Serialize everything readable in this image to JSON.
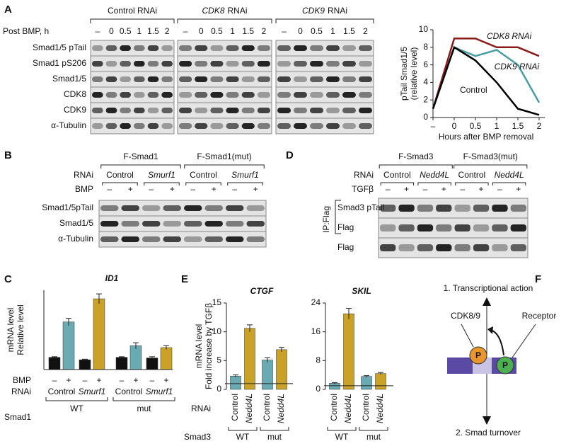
{
  "panel_labels": [
    "A",
    "B",
    "C",
    "D",
    "E",
    "F"
  ],
  "panel_a": {
    "headers": [
      {
        "text": "Control RNAi"
      },
      {
        "gene": "CDK8",
        "text": "RNAi"
      },
      {
        "gene": "CDK9",
        "text": "RNAi"
      }
    ],
    "time_label": "Post BMP, h",
    "lanes": [
      "–",
      "0",
      "0.5",
      "1",
      "1.5",
      "2"
    ],
    "rows": [
      "Smad1/5 pTail",
      "Smad1 pS206",
      "Smad1/5",
      "CDK8",
      "CDK9",
      "α-Tubulin"
    ]
  },
  "panel_b": {
    "constructs": [
      "F-Smad1",
      "F-Smad1(mut)"
    ],
    "rnai_label": "RNAi",
    "rnai": [
      "Control",
      "Smurf1",
      "Control",
      "Smurf1"
    ],
    "treatment_label": "BMP",
    "treatment": [
      "–",
      "+",
      "–",
      "+",
      "–",
      "+",
      "–",
      "+"
    ],
    "rows": [
      "Smad1/5pTail",
      "Smad1/5",
      "α-Tubulin"
    ]
  },
  "panel_d": {
    "constructs": [
      "F-Smad3",
      "F-Smad3(mut)"
    ],
    "rnai_label": "RNAi",
    "rnai": [
      "Control",
      "Nedd4L",
      "Control",
      "Nedd4L"
    ],
    "treatment_label": "TGFβ",
    "treatment": [
      "–",
      "+",
      "–",
      "+",
      "–",
      "+",
      "–",
      "+"
    ],
    "ip_label": "IP:Flag",
    "rows": [
      "Smad3 pTail",
      "Flag",
      "Flag"
    ]
  },
  "panel_f": {
    "top": "1. Transcriptional action",
    "kinase": "CDK8/9",
    "receptor": "Receptor",
    "phospho": [
      "P",
      "P"
    ],
    "bottom": "2. Smad turnover"
  },
  "chart_data": [
    {
      "type": "line",
      "categories": [
        "–",
        "0",
        "0.5",
        "1",
        "1.5",
        "2"
      ],
      "ylabel": [
        "pTail Smad1/5",
        "(relative level)"
      ],
      "xlabel": "Hours after BMP removal",
      "ylim": [
        0,
        10
      ],
      "yticks": [
        0,
        2,
        4,
        6,
        8,
        10
      ],
      "series": [
        {
          "name": "CDK8 RNAi",
          "color": "#8b1a1a",
          "values": [
            1,
            9,
            9,
            8,
            8,
            7
          ]
        },
        {
          "name": "CDK9 RNAi",
          "color": "#4a9da3",
          "values": [
            1,
            8,
            7,
            7.7,
            6,
            1.7
          ]
        },
        {
          "name": "Control",
          "color": "#000000",
          "values": [
            1,
            8,
            6.5,
            4,
            1,
            0.3
          ]
        }
      ]
    },
    {
      "type": "bar",
      "title": "ID1",
      "ylabel": [
        "mRNA level",
        "Relative level"
      ],
      "ylim": [
        0,
        6.5
      ],
      "values": [
        1,
        3.9,
        0.8,
        5.8,
        1,
        1.95,
        0.95,
        1.8
      ],
      "errors": [
        0.05,
        0.3,
        0.05,
        0.4,
        0.05,
        0.25,
        0.1,
        0.15
      ],
      "colors": [
        "#111111",
        "#6aaab3",
        "#111111",
        "#c9a227",
        "#111111",
        "#6aaab3",
        "#111111",
        "#c9a227"
      ],
      "treatment_label": "BMP",
      "treatment": [
        "–",
        "+",
        "–",
        "+",
        "–",
        "+",
        "–",
        "+"
      ],
      "rnai_label": "RNAi",
      "rnai": [
        "Control",
        "Smurf1",
        "Control",
        "Smurf1"
      ],
      "group_label": "Smad1",
      "groups": [
        "WT",
        "mut"
      ]
    },
    {
      "type": "bar",
      "title": "CTGF",
      "ylabel": [
        "mRNA level",
        "Fold increase by TGFβ"
      ],
      "ylim": [
        0,
        15
      ],
      "yticks": [
        0,
        5,
        10,
        15
      ],
      "reference": 1,
      "categories": [
        "Control",
        "Nedd4L",
        "Control",
        "Nedd4L"
      ],
      "values": [
        2.3,
        10.6,
        5.1,
        6.9
      ],
      "errors": [
        0.2,
        0.6,
        0.4,
        0.4
      ],
      "colors": [
        "#6aaab3",
        "#c9a227",
        "#6aaab3",
        "#c9a227"
      ],
      "rnai_label": "RNAi",
      "group_label": "Smad3",
      "groups": [
        "WT",
        "mut"
      ]
    },
    {
      "type": "bar",
      "title": "SKIL",
      "ylim": [
        0,
        24
      ],
      "yticks": [
        0,
        8,
        16,
        24
      ],
      "reference": 1,
      "categories": [
        "Control",
        "Nedd4L",
        "Control",
        "Nedd4L"
      ],
      "values": [
        1.7,
        21,
        3.6,
        4.4
      ],
      "errors": [
        0.2,
        1.5,
        0.2,
        0.3
      ],
      "colors": [
        "#6aaab3",
        "#c9a227",
        "#6aaab3",
        "#c9a227"
      ],
      "groups": [
        "WT",
        "mut"
      ]
    }
  ]
}
